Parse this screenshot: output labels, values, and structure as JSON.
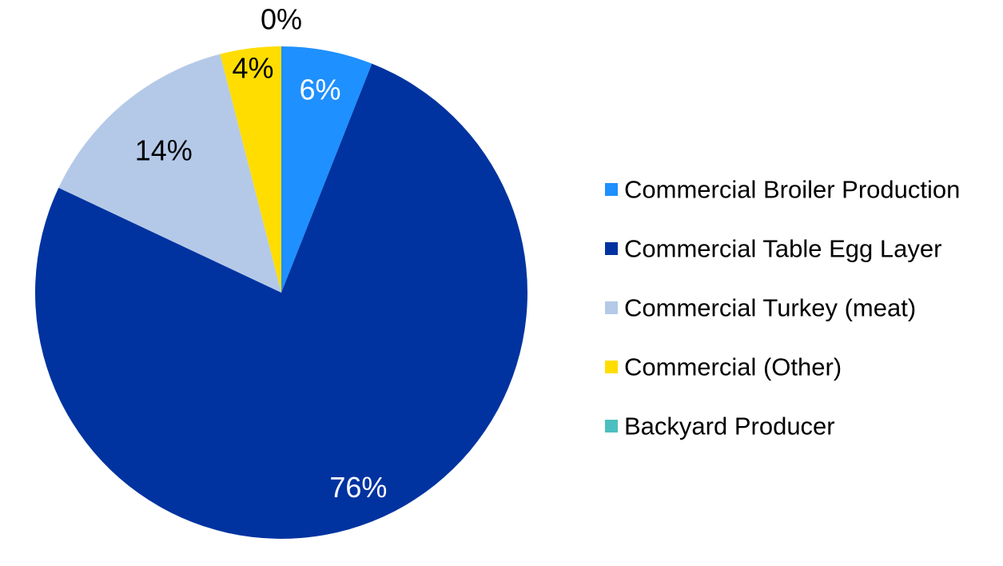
{
  "chart_data": {
    "type": "pie",
    "title": "",
    "slices": [
      {
        "label": "Commercial Broiler Production",
        "value": 6,
        "display": "6%",
        "color": "#1E90FF",
        "label_color": "#FFFFFF"
      },
      {
        "label": "Commercial Table Egg Layer",
        "value": 76,
        "display": "76%",
        "color": "#0033A0",
        "label_color": "#FFFFFF"
      },
      {
        "label": "Commercial Turkey (meat)",
        "value": 14,
        "display": "14%",
        "color": "#B4C9E8",
        "label_color": "#000000"
      },
      {
        "label": "Commercial (Other)",
        "value": 4,
        "display": "4%",
        "color": "#FFDD00",
        "label_color": "#000000"
      },
      {
        "label": "Backyard Producer",
        "value": 0,
        "display": "0%",
        "color": "#4BBFBF",
        "label_color": "#000000"
      }
    ],
    "start_angle": "12 o'clock",
    "direction": "clockwise",
    "legend_position": "right"
  }
}
